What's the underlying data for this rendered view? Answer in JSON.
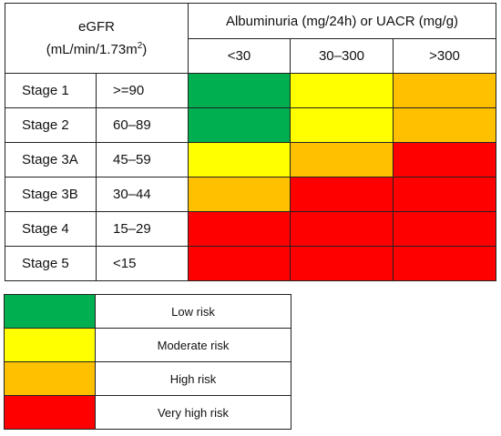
{
  "header": {
    "egfr_line1": "eGFR",
    "egfr_line2": "(mL/min/1.73m",
    "egfr_sup": "2",
    "egfr_close": ")",
    "albuminuria": "Albuminuria (mg/24h) or UACR (mg/g)",
    "columns": [
      "<30",
      "30–300",
      ">300"
    ]
  },
  "rows": [
    {
      "stage": "Stage 1",
      "range": ">=90"
    },
    {
      "stage": "Stage 2",
      "range": "60–89"
    },
    {
      "stage": "Stage 3A",
      "range": "45–59"
    },
    {
      "stage": "Stage 3B",
      "range": "30–44"
    },
    {
      "stage": "Stage 4",
      "range": "15–29"
    },
    {
      "stage": "Stage 5",
      "range": "<15"
    }
  ],
  "risk_matrix": [
    [
      "low",
      "moderate",
      "high"
    ],
    [
      "low",
      "moderate",
      "high"
    ],
    [
      "moderate",
      "high",
      "very_high"
    ],
    [
      "high",
      "very_high",
      "very_high"
    ],
    [
      "very_high",
      "very_high",
      "very_high"
    ],
    [
      "very_high",
      "very_high",
      "very_high"
    ]
  ],
  "colors": {
    "low": "#00b050",
    "moderate": "#ffff00",
    "high": "#ffc000",
    "very_high": "#ff0000"
  },
  "legend": [
    {
      "key": "low",
      "label": "Low risk"
    },
    {
      "key": "moderate",
      "label": "Moderate risk"
    },
    {
      "key": "high",
      "label": "High risk"
    },
    {
      "key": "very_high",
      "label": "Very high risk"
    }
  ]
}
